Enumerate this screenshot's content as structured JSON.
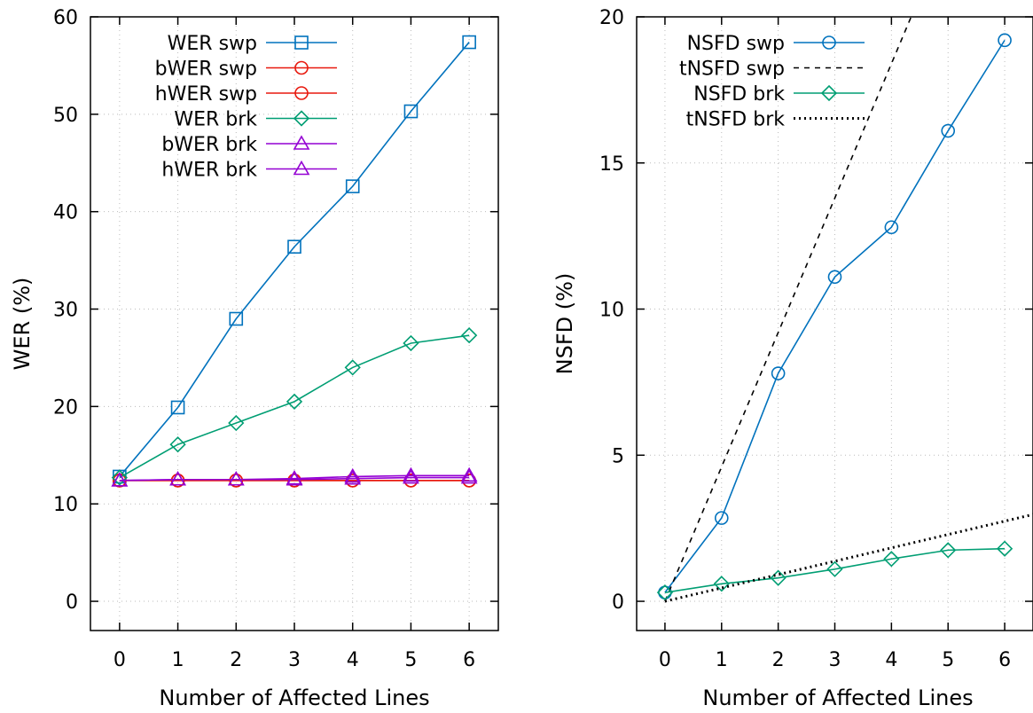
{
  "chart_data": [
    {
      "type": "line",
      "xlabel": "Number of Affected Lines",
      "ylabel": "WER (%)",
      "xlim": [
        -0.5,
        6.5
      ],
      "ylim": [
        -3,
        60
      ],
      "x_ticks": [
        "0",
        "1",
        "2",
        "3",
        "4",
        "5",
        "6"
      ],
      "y_ticks": [
        "0",
        "10",
        "20",
        "30",
        "40",
        "50",
        "60"
      ],
      "grid": true,
      "legend_position": "top-left",
      "x": [
        0,
        1,
        2,
        3,
        4,
        5,
        6
      ],
      "series": [
        {
          "name": "WER swp",
          "values": [
            12.8,
            19.9,
            29.0,
            36.4,
            42.6,
            50.3,
            57.4
          ],
          "color": "#0072bd",
          "marker": "square",
          "dash": "solid"
        },
        {
          "name": "bWER swp",
          "values": [
            12.4,
            12.4,
            12.4,
            12.4,
            12.4,
            12.4,
            12.4
          ],
          "color": "#e8190e",
          "marker": "circle",
          "dash": "solid"
        },
        {
          "name": "hWER swp",
          "values": [
            12.4,
            12.4,
            12.4,
            12.4,
            12.4,
            12.4,
            12.4
          ],
          "color": "#e8190e",
          "marker": "circle",
          "dash": "solid"
        },
        {
          "name": "WER brk",
          "values": [
            12.7,
            16.1,
            18.3,
            20.5,
            24.0,
            26.5,
            27.3
          ],
          "color": "#009e73",
          "marker": "diamond",
          "dash": "solid"
        },
        {
          "name": "bWER brk",
          "values": [
            12.4,
            12.5,
            12.5,
            12.5,
            12.6,
            12.7,
            12.7
          ],
          "color": "#9400d3",
          "marker": "triangle",
          "dash": "solid"
        },
        {
          "name": "hWER brk",
          "values": [
            12.4,
            12.5,
            12.5,
            12.6,
            12.8,
            12.9,
            12.9
          ],
          "color": "#9400d3",
          "marker": "triangle",
          "dash": "solid"
        }
      ]
    },
    {
      "type": "line",
      "xlabel": "Number of Affected Lines",
      "ylabel": "NSFD (%)",
      "xlim": [
        -0.5,
        6.5
      ],
      "ylim": [
        -1,
        20
      ],
      "x_ticks": [
        "0",
        "1",
        "2",
        "3",
        "4",
        "5",
        "6"
      ],
      "y_ticks": [
        "0",
        "5",
        "10",
        "15",
        "20"
      ],
      "grid": true,
      "legend_position": "top-left",
      "x": [
        0,
        1,
        2,
        3,
        4,
        5,
        6
      ],
      "series": [
        {
          "name": "NSFD swp",
          "values": [
            0.3,
            2.85,
            7.8,
            11.1,
            12.8,
            16.1,
            19.2
          ],
          "color": "#0072bd",
          "marker": "circle",
          "dash": "solid"
        },
        {
          "name": "tNSFD swp",
          "line": {
            "x": [
              0,
              7
            ],
            "values": [
              0.0,
              32.2
            ]
          },
          "color": "#000000",
          "marker": "none",
          "dash": "dashed"
        },
        {
          "name": "NSFD brk",
          "values": [
            0.3,
            0.6,
            0.8,
            1.1,
            1.45,
            1.75,
            1.8
          ],
          "color": "#009e73",
          "marker": "diamond",
          "dash": "solid"
        },
        {
          "name": "tNSFD brk",
          "line": {
            "x": [
              0,
              7
            ],
            "values": [
              0.0,
              3.2
            ]
          },
          "color": "#000000",
          "marker": "none",
          "dash": "dotted"
        }
      ]
    }
  ]
}
